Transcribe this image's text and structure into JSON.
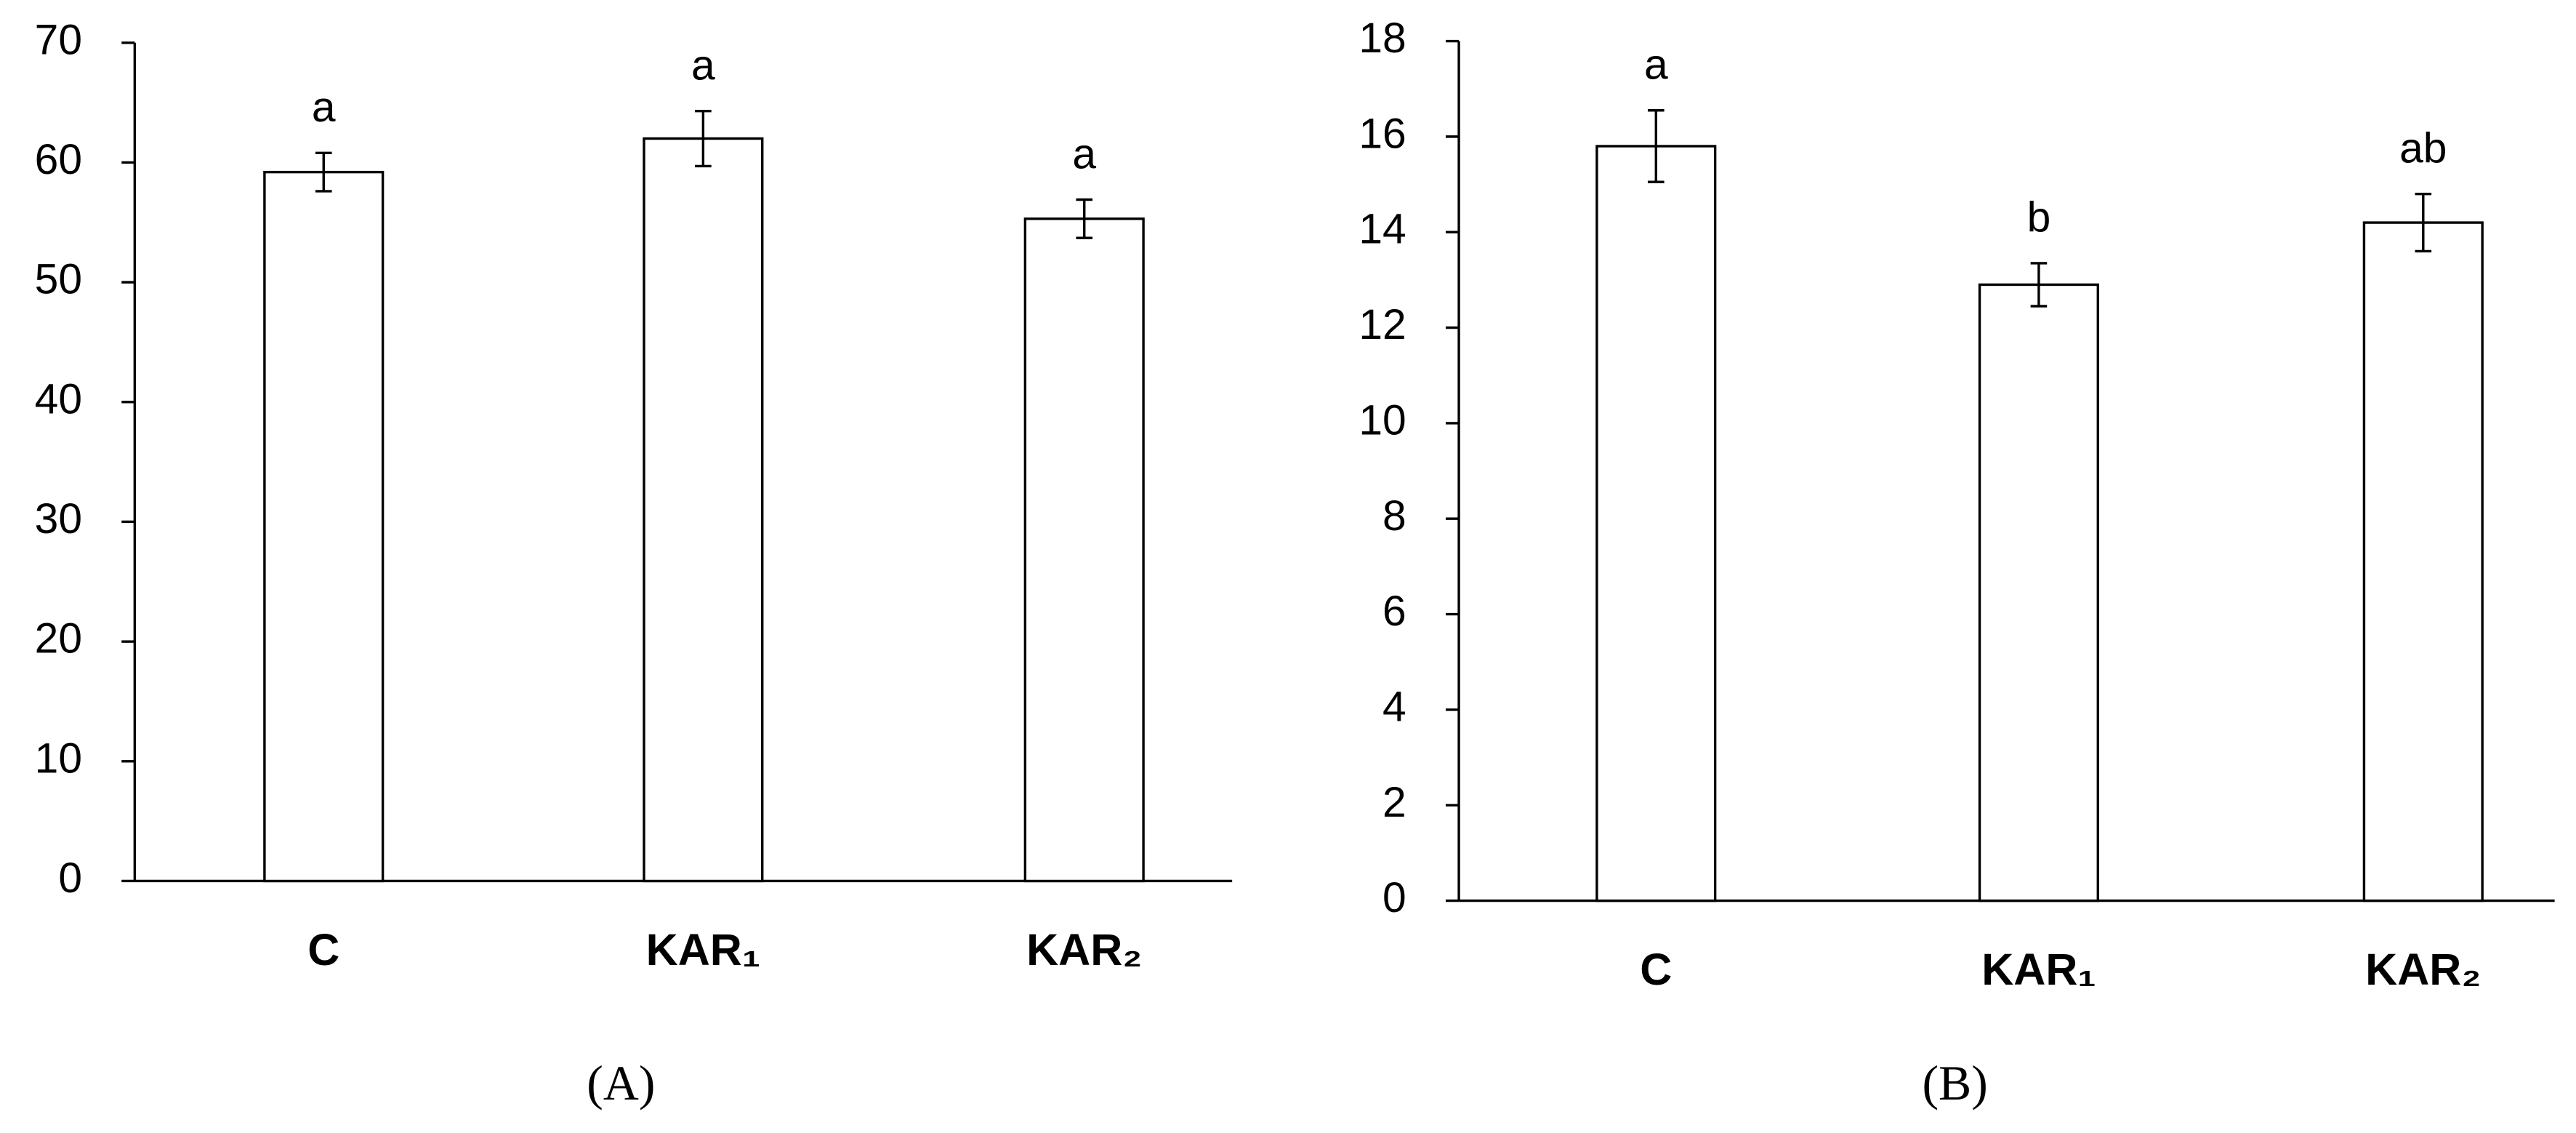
{
  "chart_data": [
    {
      "type": "bar",
      "label": "(A)",
      "categories": [
        "C",
        "KAR₁",
        "KAR₂"
      ],
      "values": [
        59.2,
        62.0,
        55.3
      ],
      "errors": [
        1.6,
        2.3,
        1.6
      ],
      "annotations": [
        "a",
        "a",
        "a"
      ],
      "color": "#ffffff",
      "ylim": [
        0,
        70
      ],
      "yticks": [
        0,
        10,
        20,
        30,
        40,
        50,
        60,
        70
      ]
    },
    {
      "type": "bar",
      "label": "(B)",
      "categories": [
        "C",
        "KAR₁",
        "KAR₂"
      ],
      "values": [
        15.8,
        12.9,
        14.2
      ],
      "errors": [
        0.75,
        0.45,
        0.6
      ],
      "annotations": [
        "a",
        "b",
        "ab"
      ],
      "color": "#ffffff",
      "ylim": [
        0,
        18
      ],
      "yticks": [
        0,
        2,
        4,
        6,
        8,
        10,
        12,
        14,
        16,
        18
      ]
    }
  ]
}
